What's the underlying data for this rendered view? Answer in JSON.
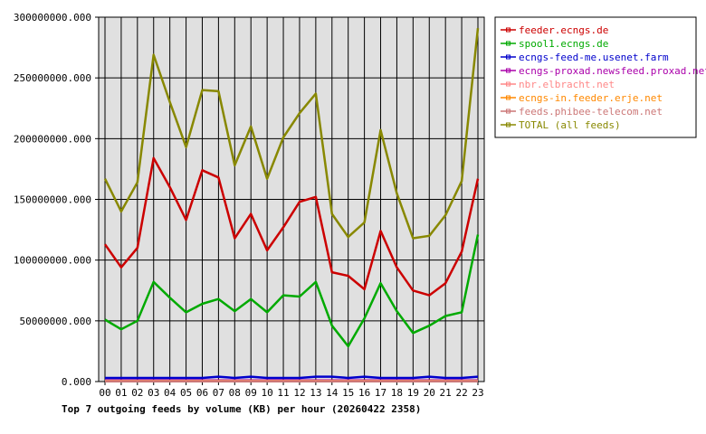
{
  "chart_data": {
    "type": "line",
    "title": "Top 7 outgoing feeds by volume (KB) per hour (20260422 2358)",
    "xlabel": "",
    "ylabel": "",
    "ylim": [
      0,
      300000000
    ],
    "yticks": [
      "0.000",
      "50000000.000",
      "100000000.000",
      "150000000.000",
      "200000000.000",
      "250000000.000",
      "300000000.000"
    ],
    "categories": [
      "00",
      "01",
      "02",
      "03",
      "04",
      "05",
      "06",
      "07",
      "08",
      "09",
      "10",
      "11",
      "12",
      "13",
      "14",
      "15",
      "16",
      "17",
      "18",
      "19",
      "20",
      "21",
      "22",
      "23"
    ],
    "grid": true,
    "legend_position": "right",
    "series": [
      {
        "name": "feeder.ecngs.de",
        "color": "#cc0000",
        "values": [
          113000000,
          94000000,
          110000000,
          184000000,
          160000000,
          133000000,
          174000000,
          168000000,
          118000000,
          138000000,
          108000000,
          127000000,
          148000000,
          152000000,
          90000000,
          87000000,
          76000000,
          124000000,
          94000000,
          75000000,
          71000000,
          81000000,
          107000000,
          167000000
        ]
      },
      {
        "name": "spool1.ecngs.de",
        "color": "#00aa00",
        "values": [
          51000000,
          43000000,
          50000000,
          82000000,
          69000000,
          57000000,
          64000000,
          68000000,
          58000000,
          68000000,
          57000000,
          71000000,
          70000000,
          82000000,
          46000000,
          29000000,
          52000000,
          81000000,
          58000000,
          40000000,
          46000000,
          54000000,
          57000000,
          121000000
        ]
      },
      {
        "name": "ecngs-feed-me.usenet.farm",
        "color": "#0000cc",
        "values": [
          3000000,
          3000000,
          3000000,
          3000000,
          3000000,
          3000000,
          3000000,
          4000000,
          3000000,
          4000000,
          3000000,
          3000000,
          3000000,
          4000000,
          4000000,
          3000000,
          4000000,
          3000000,
          3000000,
          3000000,
          4000000,
          3000000,
          3000000,
          4000000
        ]
      },
      {
        "name": "ecngs-proxad.newsfeed.proxad.net",
        "color": "#aa00aa",
        "values": [
          1000000,
          1000000,
          1000000,
          1000000,
          1000000,
          1000000,
          1000000,
          1000000,
          1000000,
          1000000,
          1000000,
          1000000,
          1000000,
          1000000,
          1000000,
          1000000,
          1000000,
          1000000,
          1000000,
          1000000,
          1000000,
          1000000,
          1000000,
          1000000
        ]
      },
      {
        "name": "nbr.elbracht.net",
        "color": "#ff8888",
        "values": [
          500000,
          500000,
          500000,
          500000,
          500000,
          500000,
          500000,
          500000,
          500000,
          500000,
          500000,
          500000,
          500000,
          500000,
          500000,
          500000,
          500000,
          500000,
          500000,
          500000,
          500000,
          500000,
          500000,
          500000
        ]
      },
      {
        "name": "ecngs-in.feeder.erje.net",
        "color": "#ff8800",
        "values": [
          300000,
          300000,
          300000,
          300000,
          300000,
          300000,
          300000,
          300000,
          300000,
          300000,
          300000,
          300000,
          300000,
          300000,
          300000,
          300000,
          300000,
          300000,
          300000,
          300000,
          300000,
          300000,
          300000,
          300000
        ]
      },
      {
        "name": "feeds.phibee-telecom.net",
        "color": "#cc7777",
        "values": [
          200000,
          200000,
          200000,
          200000,
          200000,
          200000,
          200000,
          200000,
          200000,
          200000,
          200000,
          200000,
          200000,
          200000,
          200000,
          200000,
          200000,
          200000,
          200000,
          200000,
          200000,
          200000,
          200000,
          200000
        ]
      },
      {
        "name": "TOTAL (all feeds)",
        "color": "#888800",
        "values": [
          167000000,
          140000000,
          164000000,
          269000000,
          230000000,
          193000000,
          240000000,
          239000000,
          178000000,
          210000000,
          167000000,
          201000000,
          221000000,
          237000000,
          138000000,
          119000000,
          131000000,
          207000000,
          155000000,
          118000000,
          120000000,
          137000000,
          165000000,
          291000000
        ]
      }
    ]
  }
}
